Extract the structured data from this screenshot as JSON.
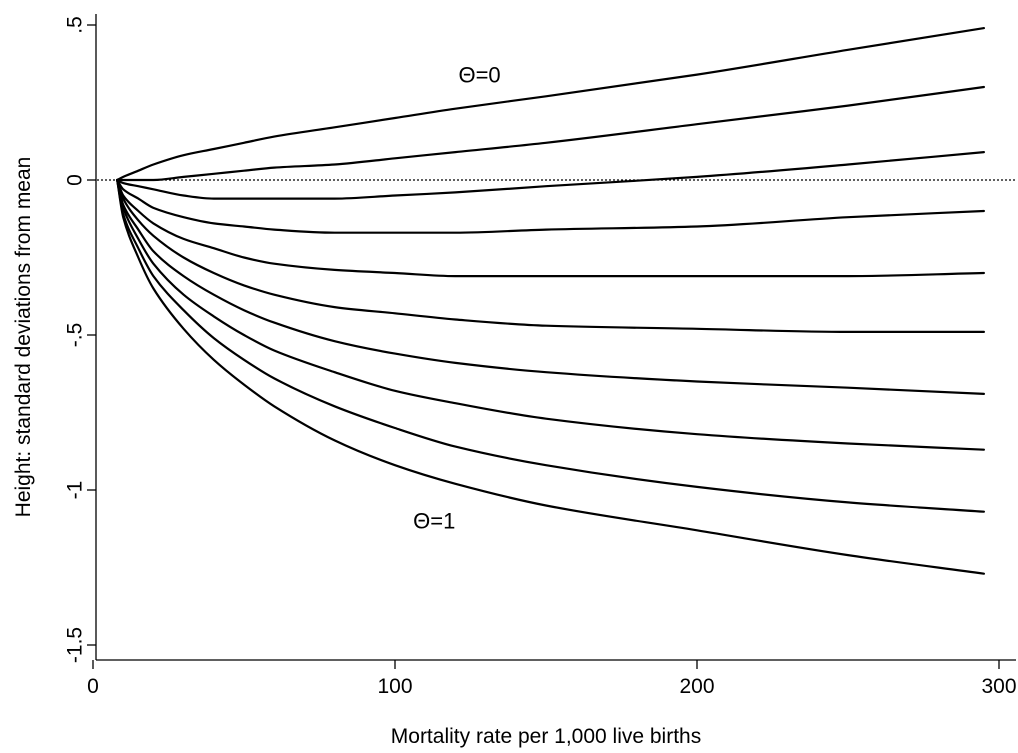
{
  "chart_data": {
    "type": "line",
    "title": "",
    "xlabel": "Mortality rate per 1,000 live births",
    "ylabel": "Height: standard deviations from mean",
    "xlim": [
      0,
      305
    ],
    "ylim": [
      -1.5,
      0.5
    ],
    "xticks": [
      {
        "value": 0,
        "label": "0"
      },
      {
        "value": 100,
        "label": "100"
      },
      {
        "value": 200,
        "label": "200"
      },
      {
        "value": 300,
        "label": "300"
      }
    ],
    "yticks": [
      {
        "value": -1.5,
        "label": "-1.5"
      },
      {
        "value": -1,
        "label": "-1"
      },
      {
        "value": -0.5,
        "label": "-.5"
      },
      {
        "value": 0,
        "label": "0"
      },
      {
        "value": 0.5,
        "label": ".5"
      }
    ],
    "reference_line": {
      "y": 0,
      "style": "dotted"
    },
    "grid": false,
    "legend": "none",
    "annotations": [
      {
        "text": "Θ=0",
        "x": 128,
        "y": 0.34
      },
      {
        "text": "Θ=1",
        "x": 113,
        "y": -1.1
      }
    ],
    "x": [
      8,
      10,
      15,
      20,
      30,
      40,
      50,
      60,
      80,
      100,
      120,
      150,
      200,
      250,
      295
    ],
    "series": [
      {
        "values": [
          0,
          0.01,
          0.03,
          0.05,
          0.08,
          0.1,
          0.12,
          0.14,
          0.17,
          0.2,
          0.23,
          0.27,
          0.34,
          0.42,
          0.49
        ]
      },
      {
        "values": [
          0,
          0.0,
          0.0,
          0.0,
          0.01,
          0.02,
          0.03,
          0.04,
          0.05,
          0.07,
          0.09,
          0.12,
          0.18,
          0.24,
          0.3
        ]
      },
      {
        "values": [
          0,
          -0.01,
          -0.02,
          -0.03,
          -0.05,
          -0.06,
          -0.06,
          -0.06,
          -0.06,
          -0.05,
          -0.04,
          -0.02,
          0.01,
          0.05,
          0.09
        ]
      },
      {
        "values": [
          0,
          -0.03,
          -0.06,
          -0.09,
          -0.12,
          -0.14,
          -0.15,
          -0.16,
          -0.17,
          -0.17,
          -0.17,
          -0.16,
          -0.15,
          -0.12,
          -0.1
        ]
      },
      {
        "values": [
          0,
          -0.05,
          -0.1,
          -0.14,
          -0.19,
          -0.22,
          -0.25,
          -0.27,
          -0.29,
          -0.3,
          -0.31,
          -0.31,
          -0.31,
          -0.31,
          -0.3
        ]
      },
      {
        "values": [
          0,
          -0.06,
          -0.13,
          -0.18,
          -0.25,
          -0.3,
          -0.34,
          -0.37,
          -0.41,
          -0.43,
          -0.45,
          -0.47,
          -0.48,
          -0.49,
          -0.49
        ]
      },
      {
        "values": [
          0,
          -0.08,
          -0.16,
          -0.23,
          -0.31,
          -0.37,
          -0.42,
          -0.46,
          -0.52,
          -0.56,
          -0.59,
          -0.62,
          -0.65,
          -0.67,
          -0.69
        ]
      },
      {
        "values": [
          0,
          -0.09,
          -0.19,
          -0.27,
          -0.37,
          -0.44,
          -0.5,
          -0.55,
          -0.62,
          -0.68,
          -0.72,
          -0.77,
          -0.82,
          -0.85,
          -0.87
        ]
      },
      {
        "values": [
          0,
          -0.11,
          -0.22,
          -0.31,
          -0.42,
          -0.51,
          -0.58,
          -0.64,
          -0.73,
          -0.8,
          -0.86,
          -0.92,
          -0.99,
          -1.04,
          -1.07
        ]
      },
      {
        "values": [
          0,
          -0.12,
          -0.25,
          -0.35,
          -0.48,
          -0.58,
          -0.66,
          -0.73,
          -0.84,
          -0.92,
          -0.98,
          -1.05,
          -1.13,
          -1.21,
          -1.27
        ]
      }
    ]
  }
}
